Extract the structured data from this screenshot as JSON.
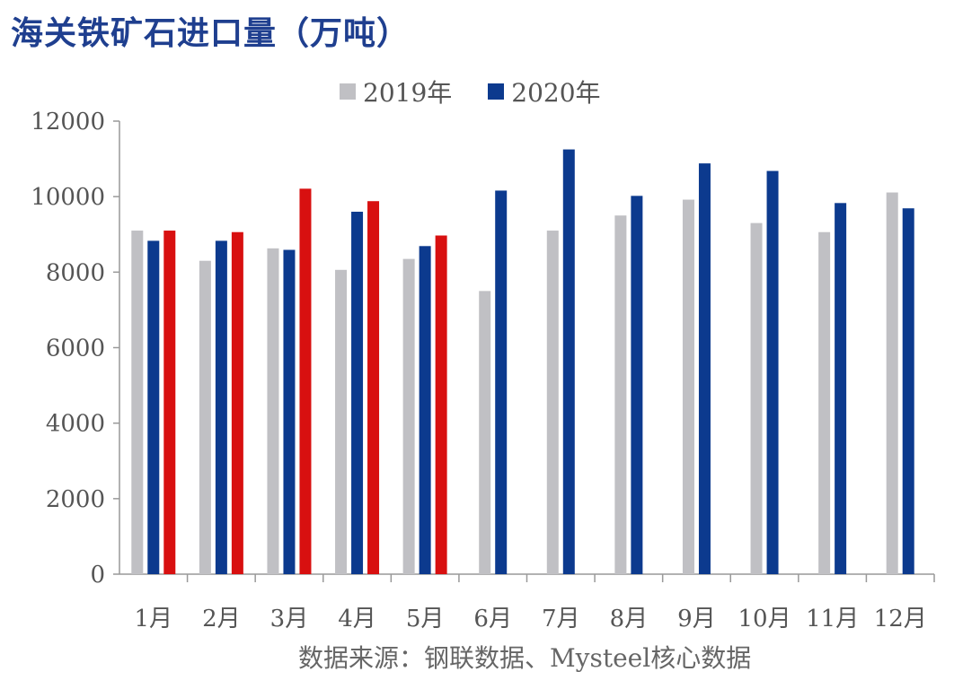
{
  "title": "海关铁矿石进口量（万吨）",
  "source": "数据来源：钢联数据、Mysteel核心数据",
  "colors": {
    "s2019": "#c0c0c4",
    "s2020": "#0c3a8e",
    "s2020_highlight": "#d81010"
  },
  "chart_data": {
    "type": "bar",
    "title": "海关铁矿石进口量（万吨）",
    "categories": [
      "1月",
      "2月",
      "3月",
      "4月",
      "5月",
      "6月",
      "7月",
      "8月",
      "9月",
      "10月",
      "11月",
      "12月"
    ],
    "ylim": [
      0,
      12000
    ],
    "yticks": [
      0,
      2000,
      4000,
      6000,
      8000,
      10000,
      12000
    ],
    "grid": false,
    "legend": "top",
    "series": [
      {
        "name": "2019年",
        "color": "#c0c0c4",
        "values": [
          9100,
          8300,
          8630,
          8060,
          8350,
          7500,
          9100,
          9500,
          9920,
          9300,
          9060,
          10110
        ]
      },
      {
        "name": "2020年",
        "color": "#0c3a8e",
        "values": [
          8830,
          8830,
          8590,
          9600,
          8690,
          10160,
          11250,
          10020,
          10880,
          10680,
          9830,
          9690
        ]
      },
      {
        "name": "",
        "color": "#d81010",
        "values": [
          9100,
          9060,
          10210,
          9880,
          8970,
          null,
          null,
          null,
          null,
          null,
          null,
          null
        ]
      }
    ]
  }
}
